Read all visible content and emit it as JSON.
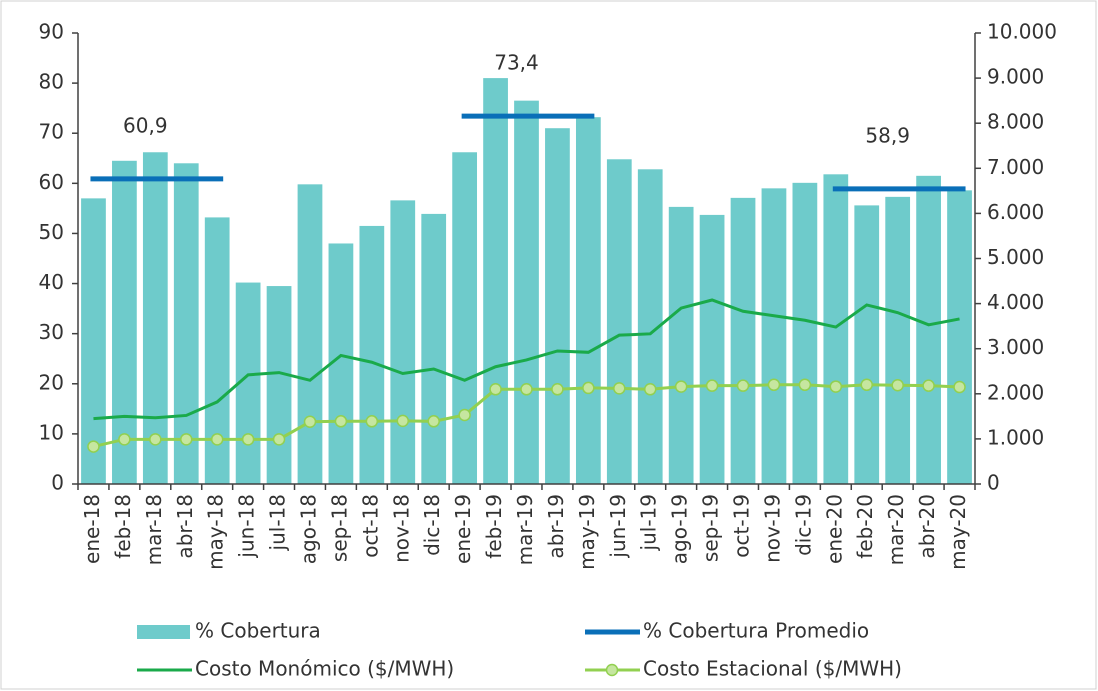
{
  "chart_data": {
    "type": "bar-line",
    "categories": [
      "ene-18",
      "feb-18",
      "mar-18",
      "abr-18",
      "may-18",
      "jun-18",
      "jul-18",
      "ago-18",
      "sep-18",
      "oct-18",
      "nov-18",
      "dic-18",
      "ene-19",
      "feb-19",
      "mar-19",
      "abr-19",
      "may-19",
      "jun-19",
      "jul-19",
      "ago-19",
      "sep-19",
      "oct-19",
      "nov-19",
      "dic-19",
      "ene-20",
      "feb-20",
      "mar-20",
      "abr-20",
      "may-20"
    ],
    "ylim": [
      0,
      90
    ],
    "yticks": [
      0,
      10,
      20,
      30,
      40,
      50,
      60,
      70,
      80,
      90
    ],
    "y2lim": [
      0,
      10000
    ],
    "y2ticks": [
      0,
      {
        "value": 1000,
        "label": "1.000"
      },
      {
        "value": 2000,
        "label": "2.000"
      },
      {
        "value": 3000,
        "label": "3.000"
      },
      {
        "value": 4000,
        "label": "4.000"
      },
      {
        "value": 5000,
        "label": "5.000"
      },
      {
        "value": 6000,
        "label": "6.000"
      },
      {
        "value": 7000,
        "label": "7.000"
      },
      {
        "value": 8000,
        "label": "8.000"
      },
      {
        "value": 9000,
        "label": "9.000"
      },
      {
        "value": 10000,
        "label": "10.000"
      }
    ],
    "series": [
      {
        "name": "% Cobertura",
        "type": "bar",
        "color": "#6ecbcb",
        "values": [
          57,
          64.5,
          66.2,
          64,
          53.2,
          40.2,
          39.5,
          59.8,
          48,
          51.5,
          56.6,
          53.9,
          66.2,
          81,
          76.5,
          71,
          73.2,
          64.8,
          62.8,
          55.3,
          53.7,
          57.1,
          59,
          60.1,
          61.8,
          55.6,
          57.3,
          61.5,
          58.6
        ]
      },
      {
        "name": "% Cobertura Promedio",
        "type": "segments",
        "color": "#0a6fb8",
        "segments": [
          {
            "from": "ene-18",
            "to": "may-18",
            "value": 60.9,
            "label": "60,9"
          },
          {
            "from": "ene-19",
            "to": "may-19",
            "value": 73.4,
            "label": "73,4"
          },
          {
            "from": "ene-20",
            "to": "may-20",
            "value": 58.9,
            "label": "58,9"
          }
        ]
      },
      {
        "name": "Costo Monómico ($/MWH)",
        "type": "line",
        "axis": "y2",
        "color": "#1aaa4a",
        "values": [
          1450,
          1500,
          1470,
          1520,
          1820,
          2420,
          2470,
          2300,
          2850,
          2700,
          2450,
          2550,
          2300,
          2600,
          2750,
          2950,
          2920,
          3300,
          3330,
          3900,
          4080,
          3830,
          3730,
          3630,
          3480,
          3970,
          3800,
          3530,
          3660
        ]
      },
      {
        "name": "Costo Estacional ($/MWH)",
        "type": "line-markers",
        "axis": "y2",
        "color": "#92d050",
        "marker_color": "#c6e6a0",
        "values": [
          830,
          990,
          990,
          990,
          990,
          990,
          990,
          1380,
          1390,
          1390,
          1400,
          1390,
          1530,
          2100,
          2100,
          2100,
          2130,
          2120,
          2100,
          2160,
          2180,
          2180,
          2200,
          2200,
          2160,
          2200,
          2190,
          2180,
          2150
        ]
      }
    ]
  }
}
